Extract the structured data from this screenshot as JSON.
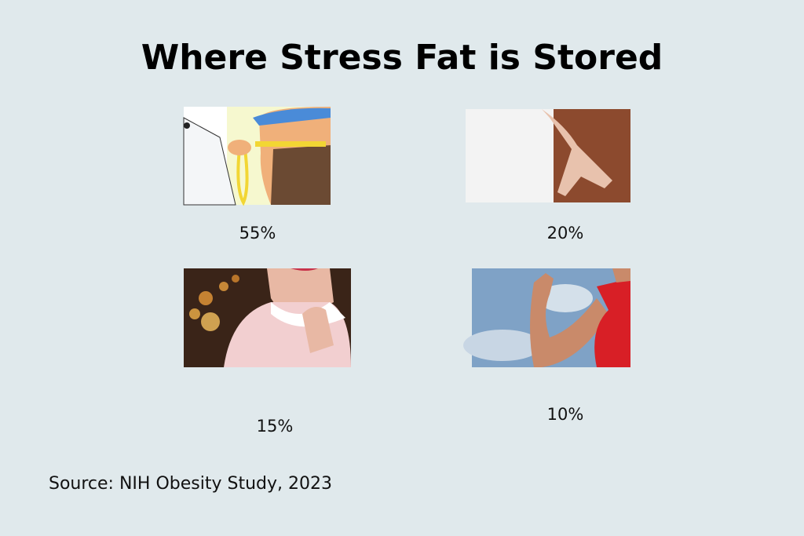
{
  "header": {
    "title": "Where Stress Fat is Stored"
  },
  "items": [
    {
      "label": "55%"
    },
    {
      "label": "20%"
    },
    {
      "label": "15%"
    },
    {
      "label": "10%"
    }
  ],
  "footer": {
    "source": "Source: NIH Obesity Study, 2023"
  }
}
